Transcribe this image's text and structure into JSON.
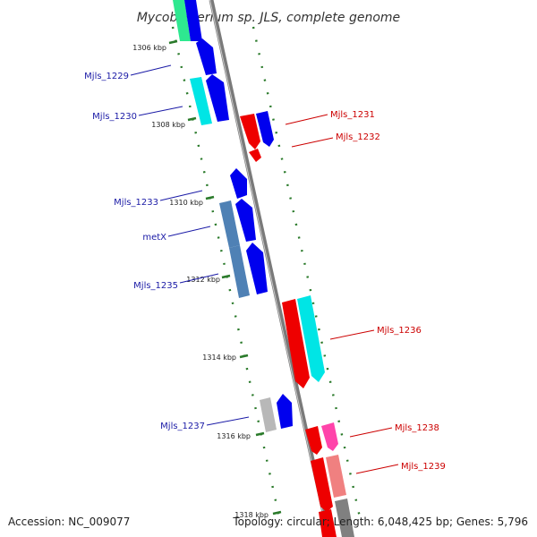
{
  "title": "Mycobacterium sp. JLS, complete genome",
  "ticks": [
    "1306 kbp",
    "1308 kbp",
    "1310 kbp",
    "1312 kbp",
    "1314 kbp",
    "1316 kbp",
    "1318 kbp"
  ],
  "genes_left": [
    "Mjls_1229",
    "Mjls_1230",
    "Mjls_1233",
    "metX",
    "Mjls_1235",
    "Mjls_1237"
  ],
  "genes_right": [
    "Mjls_1231",
    "Mjls_1232",
    "Mjls_1236",
    "Mjls_1238",
    "Mjls_1239"
  ],
  "footer": {
    "accession": "Accession: NC_009077",
    "summary": "Topology: circular; Length: 6,048,425 bp; Genes: 5,796"
  },
  "colors": {
    "forward_gene": "#0000ee",
    "reverse_gene": "#ee0000",
    "cyan_gene": "#00e5e5",
    "steel_gene": "#4f81b5",
    "pink_gene": "#ff44aa",
    "salmon_gene": "#f08080",
    "grey_gene": "#b8b8b8",
    "tick_mark": "#2a7a2a",
    "backbone": "#808080",
    "left_label": "#1a1aa6",
    "right_label": "#cc0000"
  }
}
